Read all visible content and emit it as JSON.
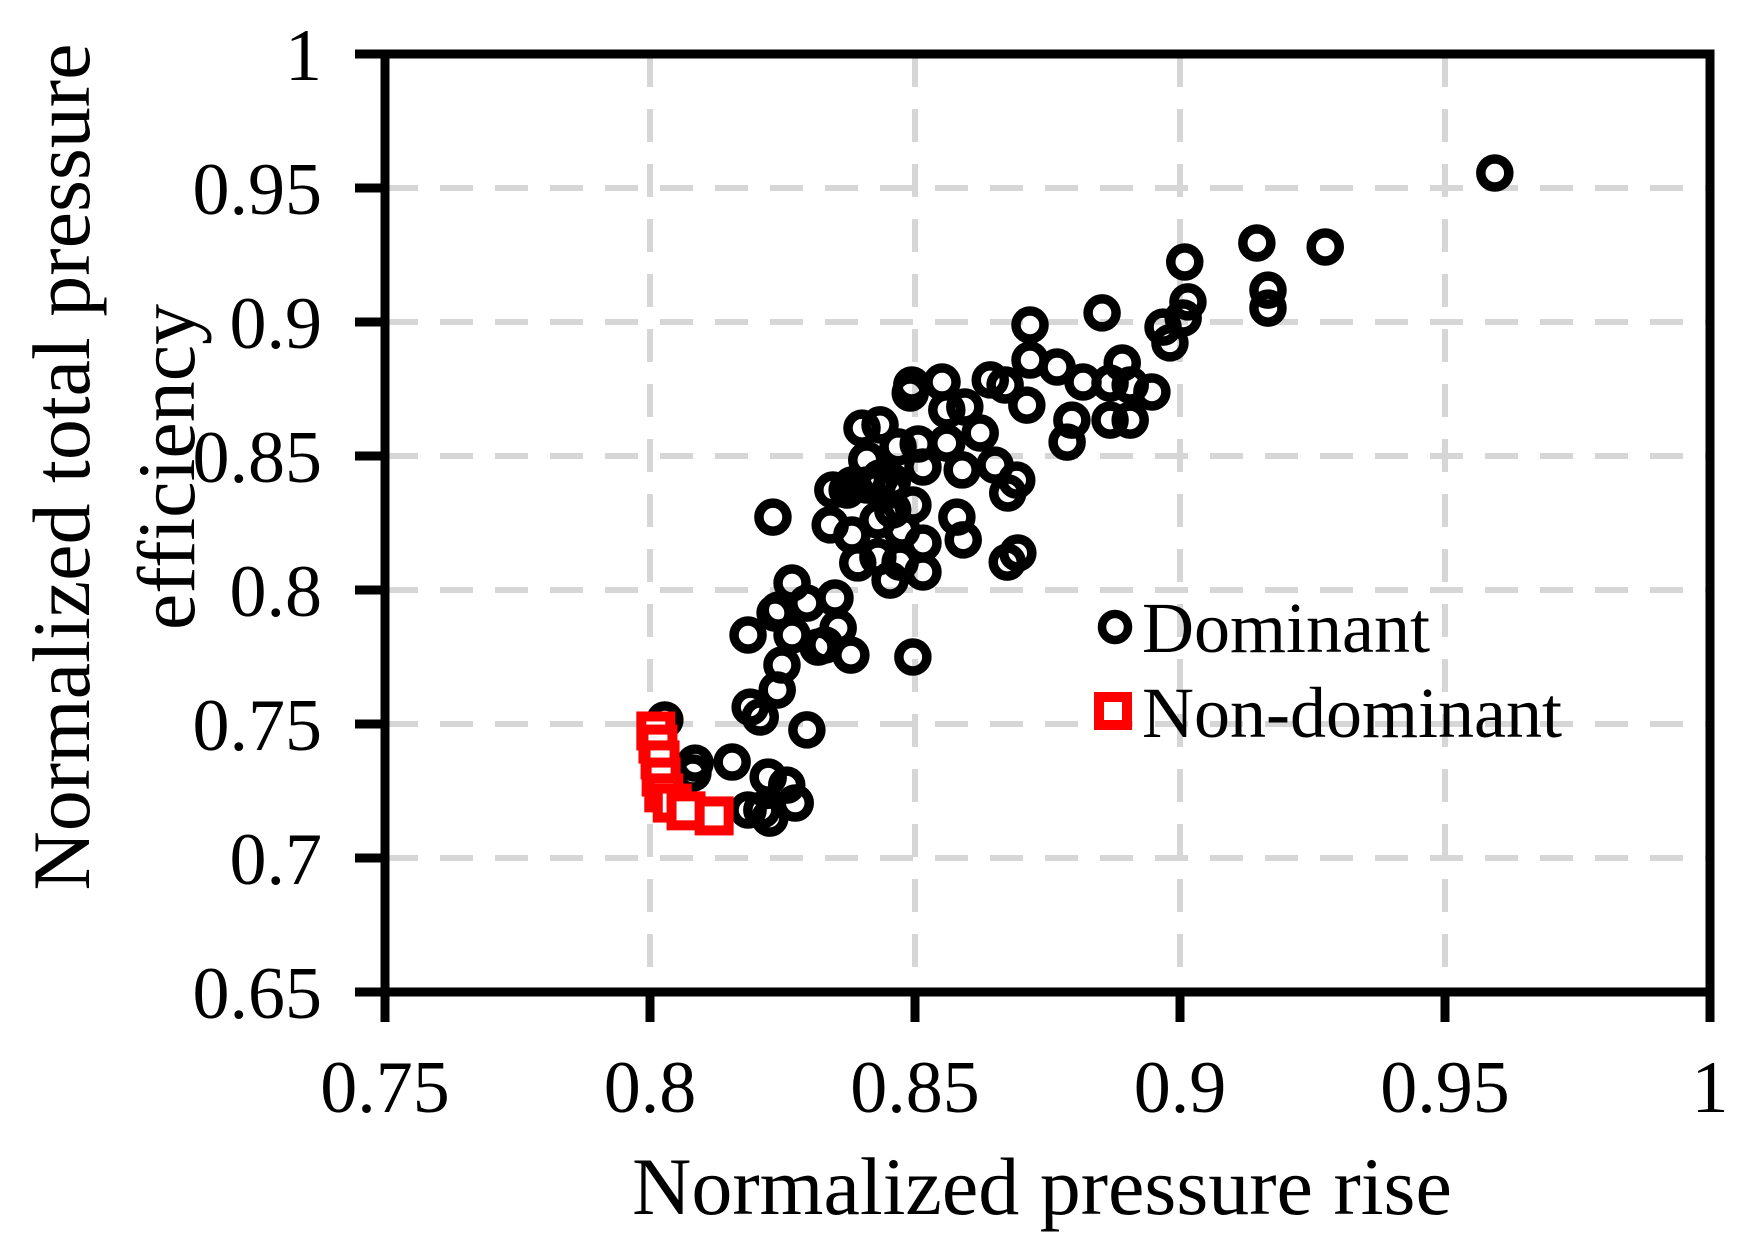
{
  "chart_data": {
    "type": "scatter",
    "title": "",
    "xlabel": "Normalized pressure rise",
    "ylabel_lines": [
      "Normalized total pressure",
      "efficiency"
    ],
    "xlim": [
      0.75,
      1.0
    ],
    "ylim": [
      0.65,
      1.0
    ],
    "x_ticks": {
      "values": [
        0.75,
        0.8,
        0.85,
        0.9,
        0.95,
        1.0
      ],
      "labels": [
        "0.75",
        "0.8",
        "0.85",
        "0.9",
        "0.95",
        "1"
      ]
    },
    "y_ticks": {
      "values": [
        0.65,
        0.7,
        0.75,
        0.8,
        0.85,
        0.9,
        0.95,
        1.0
      ],
      "labels": [
        "0.65",
        "0.7",
        "0.75",
        "0.8",
        "0.85",
        "0.9",
        "0.95",
        "1"
      ]
    },
    "grid": "dashed-both-axes",
    "legend_position": "inside-middle-right",
    "series": [
      {
        "name": "Dominant",
        "marker": "circle",
        "color": "#000000",
        "points": [
          [
            0.9594,
            0.9556
          ],
          [
            0.9145,
            0.9295
          ],
          [
            0.9274,
            0.928
          ],
          [
            0.9009,
            0.9224
          ],
          [
            0.9166,
            0.9119
          ],
          [
            0.9166,
            0.9052
          ],
          [
            0.9015,
            0.9075
          ],
          [
            0.9006,
            0.9015
          ],
          [
            0.8968,
            0.8981
          ],
          [
            0.8853,
            0.9034
          ],
          [
            0.8717,
            0.8989
          ],
          [
            0.8981,
            0.8922
          ],
          [
            0.8906,
            0.8765
          ],
          [
            0.8947,
            0.8739
          ],
          [
            0.8906,
            0.8634
          ],
          [
            0.8891,
            0.8847
          ],
          [
            0.8817,
            0.8776
          ],
          [
            0.8768,
            0.8832
          ],
          [
            0.867,
            0.8765
          ],
          [
            0.8642,
            0.8784
          ],
          [
            0.8551,
            0.8776
          ],
          [
            0.8494,
            0.8765
          ],
          [
            0.8717,
            0.8858
          ],
          [
            0.8868,
            0.8772
          ],
          [
            0.8491,
            0.8735
          ],
          [
            0.8594,
            0.8683
          ],
          [
            0.8711,
            0.869
          ],
          [
            0.8796,
            0.8634
          ],
          [
            0.8787,
            0.8552
          ],
          [
            0.8868,
            0.8634
          ],
          [
            0.8506,
            0.8545
          ],
          [
            0.856,
            0.8548
          ],
          [
            0.8623,
            0.8586
          ],
          [
            0.8468,
            0.8534
          ],
          [
            0.8434,
            0.8616
          ],
          [
            0.8515,
            0.8459
          ],
          [
            0.8589,
            0.8448
          ],
          [
            0.8651,
            0.8466
          ],
          [
            0.8434,
            0.8418
          ],
          [
            0.8453,
            0.8373
          ],
          [
            0.8496,
            0.8317
          ],
          [
            0.8579,
            0.8272
          ],
          [
            0.8675,
            0.8362
          ],
          [
            0.8692,
            0.841
          ],
          [
            0.8475,
            0.8224
          ],
          [
            0.8515,
            0.8175
          ],
          [
            0.8591,
            0.8187
          ],
          [
            0.8472,
            0.8104
          ],
          [
            0.8515,
            0.8067
          ],
          [
            0.8694,
            0.8138
          ],
          [
            0.8674,
            0.8104
          ],
          [
            0.856,
            0.8672
          ],
          [
            0.84,
            0.8604
          ],
          [
            0.8409,
            0.8485
          ],
          [
            0.8457,
            0.8403
          ],
          [
            0.8409,
            0.8392
          ],
          [
            0.8372,
            0.8373
          ],
          [
            0.8232,
            0.8272
          ],
          [
            0.834,
            0.8243
          ],
          [
            0.8381,
            0.8205
          ],
          [
            0.8345,
            0.8373
          ],
          [
            0.8381,
            0.8392
          ],
          [
            0.8428,
            0.8384
          ],
          [
            0.843,
            0.8261
          ],
          [
            0.8458,
            0.8299
          ],
          [
            0.8392,
            0.8101
          ],
          [
            0.843,
            0.8123
          ],
          [
            0.8453,
            0.8037
          ],
          [
            0.8268,
            0.8026
          ],
          [
            0.8296,
            0.7951
          ],
          [
            0.8349,
            0.797
          ],
          [
            0.8242,
            0.7925
          ],
          [
            0.8185,
            0.7832
          ],
          [
            0.8268,
            0.7832
          ],
          [
            0.8317,
            0.7787
          ],
          [
            0.8355,
            0.7858
          ],
          [
            0.8379,
            0.7757
          ],
          [
            0.833,
            0.7795
          ],
          [
            0.8249,
            0.772
          ],
          [
            0.8496,
            0.775
          ],
          [
            0.8028,
            0.7515
          ],
          [
            0.8189,
            0.7563
          ],
          [
            0.8208,
            0.7526
          ],
          [
            0.824,
            0.7627
          ],
          [
            0.8236,
            0.7914
          ],
          [
            0.8155,
            0.7358
          ],
          [
            0.8081,
            0.7317
          ],
          [
            0.8085,
            0.7354
          ],
          [
            0.8223,
            0.7302
          ],
          [
            0.8258,
            0.7272
          ],
          [
            0.8211,
            0.7179
          ],
          [
            0.8185,
            0.7179
          ],
          [
            0.8274,
            0.7205
          ],
          [
            0.8226,
            0.7149
          ],
          [
            0.8296,
            0.7478
          ]
        ]
      },
      {
        "name": "Non-dominant",
        "marker": "square",
        "color": "#ff0000",
        "points": [
          [
            0.8011,
            0.7474
          ],
          [
            0.8015,
            0.7425
          ],
          [
            0.8019,
            0.7366
          ],
          [
            0.8021,
            0.7302
          ],
          [
            0.8026,
            0.7243
          ],
          [
            0.8042,
            0.7205
          ],
          [
            0.8068,
            0.7176
          ],
          [
            0.8121,
            0.7157
          ]
        ]
      }
    ]
  },
  "legend": {
    "items": [
      {
        "label": "Dominant",
        "marker": "circle-icon",
        "color": "#000000"
      },
      {
        "label": "Non-dominant",
        "marker": "square-icon",
        "color": "#ff0000"
      }
    ]
  },
  "style": {
    "background": "#ffffff",
    "frame_color": "#000000",
    "grid_color": "#d6d6d6",
    "dominant_color": "#000000",
    "non_dominant_color": "#ff0000"
  }
}
